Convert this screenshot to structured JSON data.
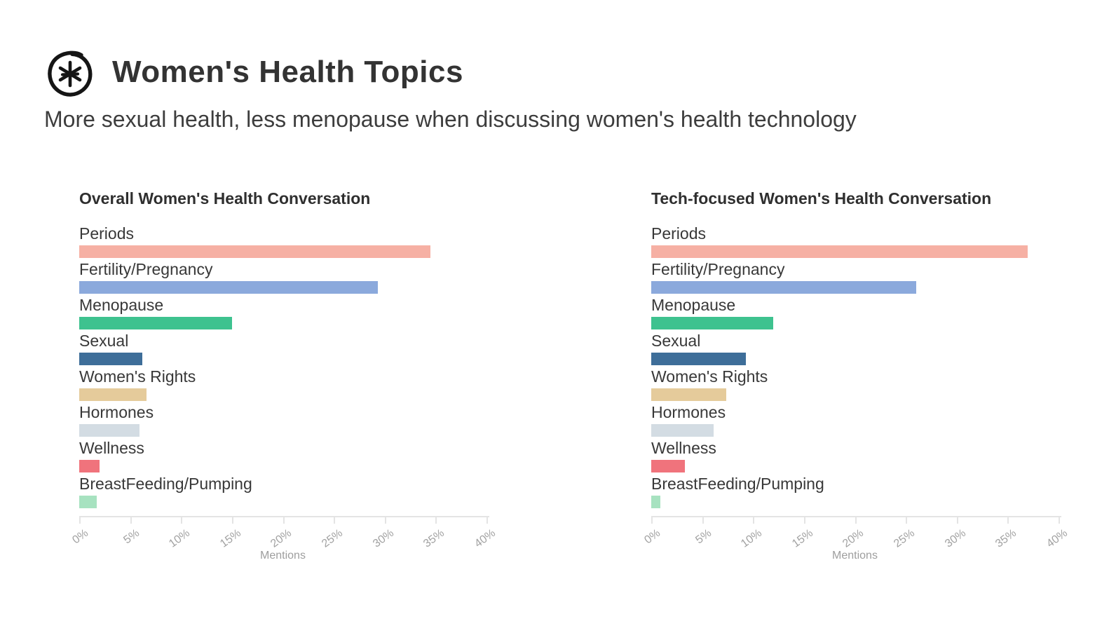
{
  "header": {
    "logo_icon": "asterisk-circle-logo-icon",
    "title": "Women's Health Topics",
    "subtitle": "More sexual health, less menopause when discussing women's health technology"
  },
  "axis": {
    "tick_labels": [
      "0%",
      "5%",
      "10%",
      "15%",
      "20%",
      "25%",
      "30%",
      "35%",
      "40%"
    ],
    "max_percent": 40,
    "xlabel": "Mentions",
    "tick_color": "#a2a2a2",
    "line_color": "#e4e4e4"
  },
  "chart_data": [
    {
      "type": "bar",
      "orientation": "horizontal",
      "title": "Overall Women's Health Conversation",
      "xlabel": "Mentions",
      "xlim": [
        0,
        40
      ],
      "x_tick_labels": [
        "0%",
        "5%",
        "10%",
        "15%",
        "20%",
        "25%",
        "30%",
        "35%",
        "40%"
      ],
      "categories": [
        "Periods",
        "Fertility/Pregnancy",
        "Menopause",
        "Sexual",
        "Women's Rights",
        "Hormones",
        "Wellness",
        "BreastFeeding/Pumping"
      ],
      "values": [
        34.5,
        29.3,
        15.0,
        6.2,
        6.6,
        5.9,
        2.0,
        1.7
      ],
      "bar_colors": [
        "#F6B0A4",
        "#8BA9DC",
        "#3EC28F",
        "#3E6E99",
        "#E5CB9B",
        "#D3DCE3",
        "#F0737C",
        "#A7E2C0"
      ]
    },
    {
      "type": "bar",
      "orientation": "horizontal",
      "title": "Tech-focused Women's Health Conversation",
      "xlabel": "Mentions",
      "xlim": [
        0,
        40
      ],
      "x_tick_labels": [
        "0%",
        "5%",
        "10%",
        "15%",
        "20%",
        "25%",
        "30%",
        "35%",
        "40%"
      ],
      "categories": [
        "Periods",
        "Fertility/Pregnancy",
        "Menopause",
        "Sexual",
        "Women's Rights",
        "Hormones",
        "Wellness",
        "BreastFeeding/Pumping"
      ],
      "values": [
        37.0,
        26.0,
        12.0,
        9.3,
        7.4,
        6.1,
        3.3,
        0.9
      ],
      "bar_colors": [
        "#F6B0A4",
        "#8BA9DC",
        "#3EC28F",
        "#3E6E99",
        "#E5CB9B",
        "#D3DCE3",
        "#F0737C",
        "#A7E2C0"
      ]
    }
  ]
}
